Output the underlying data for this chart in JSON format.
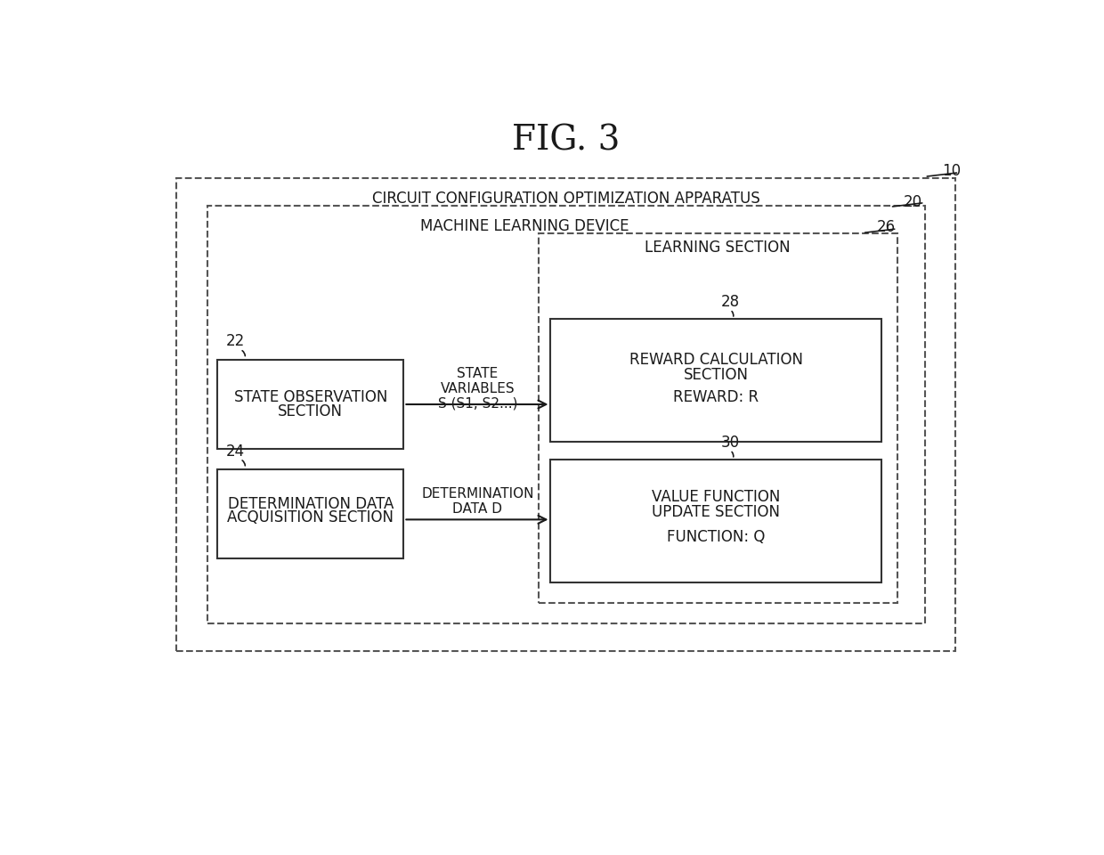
{
  "title": "FIG. 3",
  "bg_color": "#ffffff",
  "outer_box_label": "CIRCUIT CONFIGURATION OPTIMIZATION APPARATUS",
  "outer_box_label_num": "10",
  "inner_box_label": "MACHINE LEARNING DEVICE",
  "inner_box_label_num": "20",
  "learning_section_label": "LEARNING SECTION",
  "learning_section_num": "26",
  "state_obs_lines": [
    "STATE OBSERVATION",
    "SECTION"
  ],
  "state_obs_num": "22",
  "det_data_lines": [
    "DETERMINATION DATA",
    "ACQUISITION SECTION"
  ],
  "det_data_num": "24",
  "reward_lines": [
    "REWARD CALCULATION",
    "SECTION"
  ],
  "reward_sub": "REWARD: R",
  "reward_num": "28",
  "value_lines": [
    "VALUE FUNCTION",
    "UPDATE SECTION"
  ],
  "value_sub": "FUNCTION: Q",
  "value_num": "30",
  "arrow1_label": [
    "STATE",
    "VARIABLES",
    "S (S1, S2...)"
  ],
  "arrow2_label": [
    "DETERMINATION",
    "DATA D"
  ],
  "text_color": "#1a1a1a",
  "box_color": "#1a1a1a",
  "font_size_title": 28,
  "font_size_label": 12,
  "font_size_num": 12,
  "font_size_box": 12
}
